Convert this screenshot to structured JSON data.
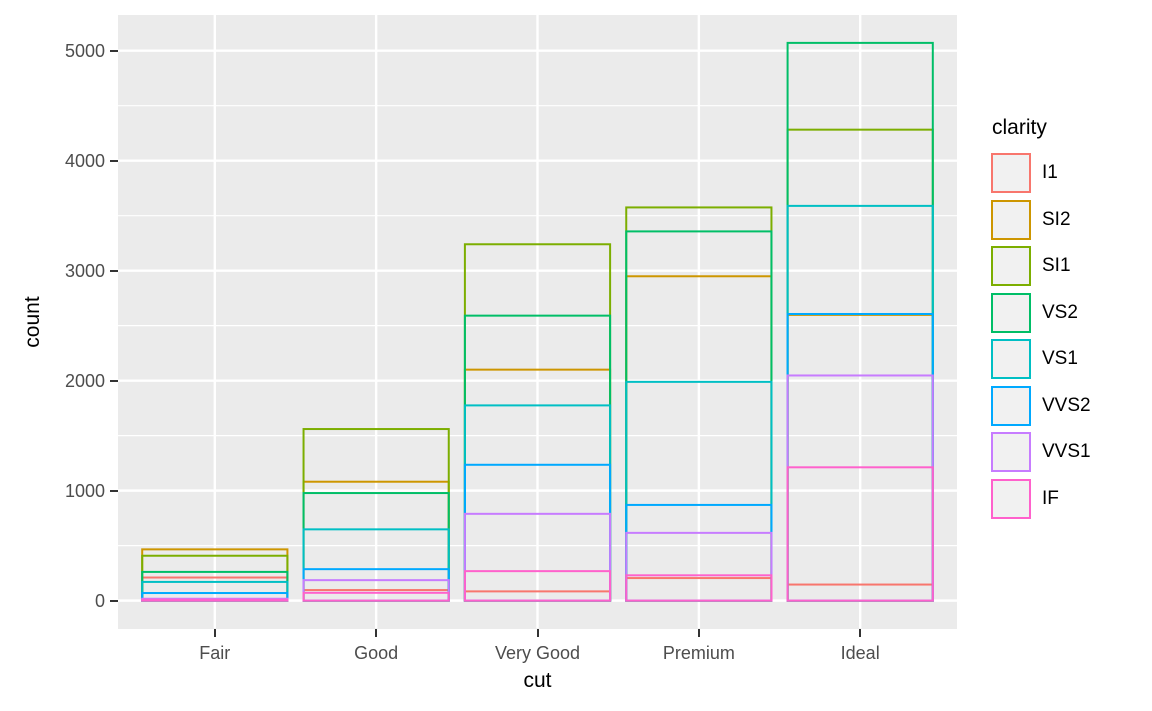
{
  "chart_data": {
    "type": "bar",
    "subtype": "outline-bars-position-identity-overlaid",
    "title": "",
    "xlabel": "cut",
    "ylabel": "count",
    "legend_title": "clarity",
    "legend_position": "right",
    "grid": "major-and-minor-white-on-grey",
    "categories": [
      "Fair",
      "Good",
      "Very Good",
      "Premium",
      "Ideal"
    ],
    "series": [
      {
        "name": "I1",
        "color": "#F8766D",
        "values": [
          210,
          96,
          84,
          205,
          146
        ]
      },
      {
        "name": "SI2",
        "color": "#CD9600",
        "values": [
          466,
          1081,
          2100,
          2949,
          2598
        ]
      },
      {
        "name": "SI1",
        "color": "#7CAE00",
        "values": [
          408,
          1560,
          3240,
          3575,
          4282
        ]
      },
      {
        "name": "VS2",
        "color": "#00BE67",
        "values": [
          261,
          978,
          2591,
          3357,
          5071
        ]
      },
      {
        "name": "VS1",
        "color": "#00BFC4",
        "values": [
          170,
          648,
          1775,
          1989,
          3589
        ]
      },
      {
        "name": "VVS2",
        "color": "#00A9FF",
        "values": [
          69,
          286,
          1235,
          870,
          2606
        ]
      },
      {
        "name": "VVS1",
        "color": "#C77CFF",
        "values": [
          17,
          186,
          789,
          616,
          2047
        ]
      },
      {
        "name": "IF",
        "color": "#FF61CC",
        "values": [
          9,
          71,
          268,
          230,
          1212
        ]
      }
    ],
    "ylim": [
      0,
      5071
    ],
    "y_ticks": [
      0,
      1000,
      2000,
      3000,
      4000,
      5000
    ],
    "y_minor_ticks": [
      500,
      1500,
      2500,
      3500,
      4500
    ],
    "bar_width_fraction": 0.9
  },
  "theme": {
    "panel_bg": "#EBEBEB",
    "grid_major_color": "#FFFFFF",
    "grid_minor_color": "#FFFFFF",
    "tick_mark_color": "#333333",
    "tick_label_color": "#4D4D4D",
    "axis_title_color": "#000000",
    "legend_key_bg": "#F1F1F1",
    "figure_bg": "#FFFFFF"
  }
}
